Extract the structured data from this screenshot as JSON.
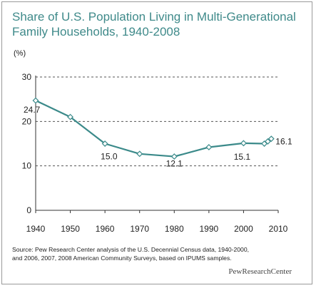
{
  "colors": {
    "line": "#3b8a8a",
    "marker_fill": "#ffffff",
    "grid": "#555555",
    "title": "#3f8a8a"
  },
  "title_line1": "Share of U.S. Population Living in Multi-Generational",
  "title_line2": "Family Households, 1940-2008",
  "unit_label": "(%)",
  "source_line1": "Source: Pew Research Center analysis of the U.S. Decennial Census data, 1940-2000,",
  "source_line2": "and 2006, 2007, 2008 American Community Surveys, based on IPUMS samples.",
  "brand": "PewResearchCenter",
  "chart_data": {
    "type": "line",
    "title": "Share of U.S. Population Living in Multi-Generational Family Households, 1940-2008",
    "ylabel": "(%)",
    "xlabel": "",
    "xlim": [
      1940,
      2010
    ],
    "ylim": [
      0,
      30
    ],
    "x_ticks": [
      1940,
      1950,
      1960,
      1970,
      1980,
      1990,
      2000,
      2010
    ],
    "y_ticks": [
      0,
      10,
      20,
      30
    ],
    "grid": "horizontal dashed",
    "legend": "none",
    "series": [
      {
        "x": [
          1940,
          1950,
          1960,
          1970,
          1980,
          1990,
          2000,
          2006,
          2007,
          2008
        ],
        "y": [
          24.7,
          21.0,
          15.0,
          12.7,
          12.1,
          14.2,
          15.1,
          15.0,
          15.5,
          16.1
        ]
      }
    ],
    "data_labels": [
      {
        "x": 1940,
        "y": 24.7,
        "text": "24.7"
      },
      {
        "x": 1960,
        "y": 15.0,
        "text": "15.0"
      },
      {
        "x": 1980,
        "y": 12.1,
        "text": "12.1"
      },
      {
        "x": 2000,
        "y": 15.1,
        "text": "15.1"
      },
      {
        "x": 2008,
        "y": 16.1,
        "text": "16.1"
      }
    ]
  }
}
